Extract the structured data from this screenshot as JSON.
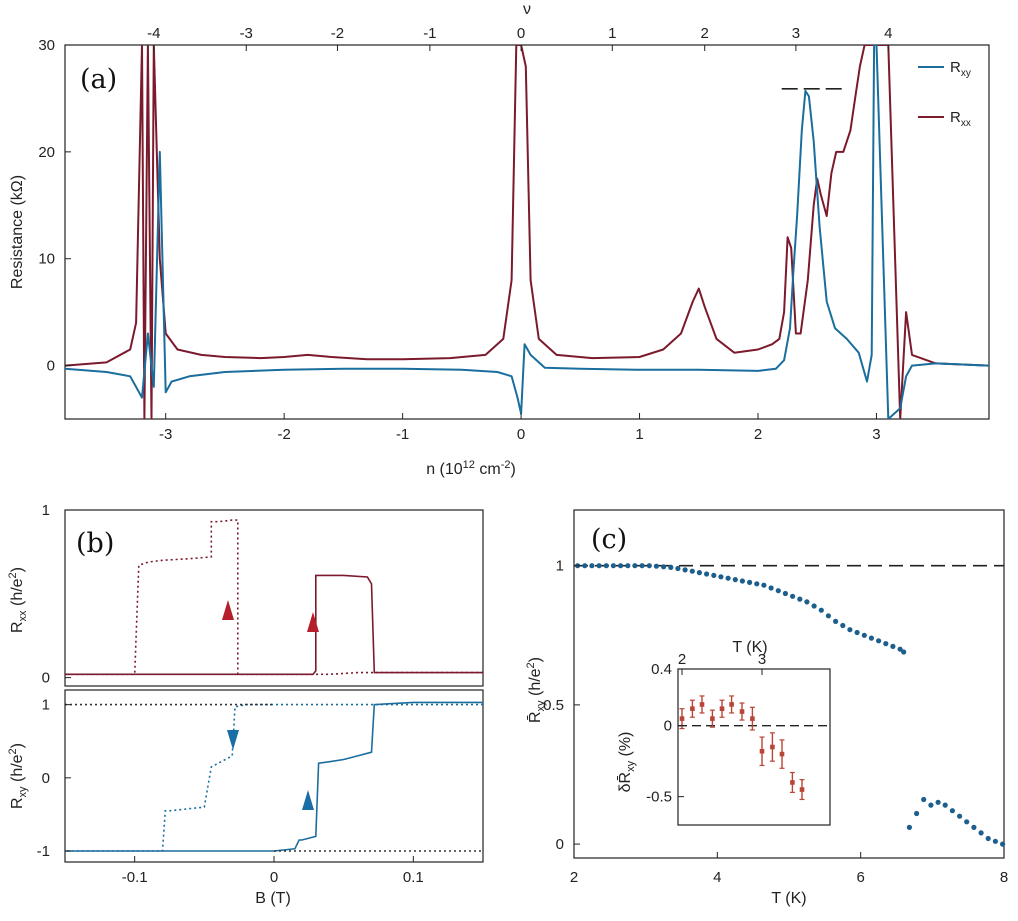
{
  "colors": {
    "rxy": "#1a6e9e",
    "rxx": "#7b1a2c",
    "rxx_arrow": "#b51e2a",
    "rxy_arrow": "#1a6ea8",
    "dots": "#1d5f8c",
    "inset": "#b84536"
  },
  "chart_data": [
    {
      "id": "a",
      "type": "line",
      "panel_label": "(a)",
      "xlabel": "n (10",
      "xlabel_sup": "12",
      "xlabel_tail": " cm",
      "xlabel_sup2": "-2",
      "xlabel_close": ")",
      "ylabel": "Resistance (kΩ)",
      "top_axis_label": "ν",
      "xlim": [
        -3.85,
        3.95
      ],
      "ylim": [
        -5,
        30
      ],
      "x_ticks": [
        "-3",
        "-2",
        "-1",
        "0",
        "1",
        "2",
        "3"
      ],
      "y_ticks": [
        "0",
        "10",
        "20",
        "30"
      ],
      "top_ticks": [
        "-4",
        "-3",
        "-2",
        "-1",
        "0",
        "1",
        "2",
        "3",
        "4"
      ],
      "top_tick_n": [
        -3.1,
        -2.32,
        -1.55,
        -0.77,
        0,
        0.77,
        1.55,
        2.32,
        3.1
      ],
      "legend": [
        {
          "label": "R",
          "sub": "xy"
        },
        {
          "label": "R",
          "sub": "xx"
        }
      ],
      "annotation": "quantized level marker at ~26 kΩ",
      "series": [
        {
          "name": "Rxy",
          "x": [
            -3.85,
            -3.5,
            -3.3,
            -3.2,
            -3.15,
            -3.1,
            -3.05,
            -3.0,
            -2.95,
            -2.8,
            -2.5,
            -2.0,
            -1.5,
            -1.0,
            -0.5,
            -0.2,
            -0.08,
            -0.03,
            0.0,
            0.03,
            0.08,
            0.2,
            0.5,
            1.0,
            1.5,
            2.0,
            2.15,
            2.22,
            2.27,
            2.3,
            2.33,
            2.37,
            2.4,
            2.43,
            2.47,
            2.52,
            2.58,
            2.65,
            2.75,
            2.85,
            2.92,
            2.96,
            2.98,
            3.0,
            3.1,
            3.2,
            3.25,
            3.3,
            3.5,
            3.95
          ],
          "y": [
            -0.3,
            -0.6,
            -1.0,
            -3.0,
            3.0,
            -2.0,
            20.0,
            -2.5,
            -1.5,
            -1.0,
            -0.6,
            -0.4,
            -0.3,
            -0.3,
            -0.4,
            -0.6,
            -1.0,
            -3.0,
            -4.5,
            2.0,
            1.0,
            -0.2,
            -0.3,
            -0.4,
            -0.4,
            -0.5,
            -0.3,
            0.5,
            3.5,
            9.0,
            14.0,
            22.0,
            25.7,
            25.2,
            21.0,
            13.0,
            6.0,
            3.5,
            2.5,
            1.2,
            -1.5,
            1.0,
            30.0,
            30.0,
            -5.0,
            -4.0,
            -1.0,
            0.0,
            0.2,
            0.0
          ]
        },
        {
          "name": "Rxx",
          "x": [
            -3.85,
            -3.5,
            -3.3,
            -3.25,
            -3.2,
            -3.18,
            -3.15,
            -3.12,
            -3.1,
            -3.05,
            -3.0,
            -2.9,
            -2.7,
            -2.5,
            -2.2,
            -2.0,
            -1.8,
            -1.6,
            -1.3,
            -1.0,
            -0.6,
            -0.3,
            -0.15,
            -0.08,
            -0.04,
            0.0,
            0.04,
            0.08,
            0.15,
            0.3,
            0.6,
            1.0,
            1.2,
            1.35,
            1.45,
            1.5,
            1.55,
            1.65,
            1.8,
            2.0,
            2.12,
            2.18,
            2.22,
            2.25,
            2.28,
            2.32,
            2.36,
            2.42,
            2.47,
            2.5,
            2.53,
            2.58,
            2.62,
            2.66,
            2.72,
            2.78,
            2.82,
            2.86,
            2.9,
            2.95,
            3.0,
            3.1,
            3.2,
            3.25,
            3.3,
            3.5,
            3.95
          ],
          "y": [
            0.0,
            0.3,
            1.5,
            4.0,
            30.0,
            -5.0,
            30.0,
            -5.0,
            30.0,
            10.0,
            3.0,
            1.5,
            1.0,
            0.8,
            0.7,
            0.8,
            1.0,
            0.8,
            0.6,
            0.6,
            0.7,
            1.0,
            2.5,
            8.0,
            30.0,
            30.0,
            28.0,
            8.0,
            2.5,
            1.0,
            0.7,
            0.8,
            1.5,
            3.0,
            6.0,
            7.2,
            5.5,
            2.5,
            1.2,
            1.5,
            2.0,
            2.5,
            5.0,
            12.0,
            11.0,
            3.0,
            3.0,
            8.0,
            15.0,
            17.5,
            16.0,
            14.0,
            18.0,
            20.0,
            20.0,
            22.0,
            25.0,
            28.0,
            30.0,
            30.0,
            30.0,
            30.0,
            -5.0,
            5.0,
            1.0,
            0.2,
            0.0
          ]
        }
      ]
    },
    {
      "id": "b_top",
      "type": "line",
      "panel_label": "(b)",
      "ylabel": "R",
      "ylabel_sub": "xx",
      "ylabel_unit": " (h/e",
      "ylabel_sup": "2",
      "ylabel_close": ")",
      "xlim": [
        -0.15,
        0.15
      ],
      "ylim": [
        -0.05,
        1.0
      ],
      "y_ticks": [
        "0",
        "1"
      ],
      "series": [
        {
          "name": "sweep down",
          "style": "dotted",
          "x": [
            0.15,
            0.06,
            0.04,
            0.03,
            0.0,
            -0.02,
            -0.026,
            -0.026,
            -0.03,
            -0.04,
            -0.045,
            -0.045,
            -0.06,
            -0.08,
            -0.09,
            -0.097,
            -0.1,
            -0.12,
            -0.15
          ],
          "y": [
            0.03,
            0.03,
            0.02,
            0.02,
            0.02,
            0.02,
            0.02,
            0.94,
            0.94,
            0.93,
            0.93,
            0.72,
            0.71,
            0.7,
            0.69,
            0.67,
            0.02,
            0.02,
            0.02
          ]
        },
        {
          "name": "sweep up",
          "style": "solid",
          "x": [
            -0.15,
            0.0,
            0.028,
            0.03,
            0.03,
            0.05,
            0.067,
            0.07,
            0.072,
            0.1,
            0.15
          ],
          "y": [
            0.02,
            0.02,
            0.02,
            0.04,
            0.61,
            0.61,
            0.6,
            0.56,
            0.03,
            0.03,
            0.03
          ]
        }
      ]
    },
    {
      "id": "b_bottom",
      "type": "line",
      "xlabel": "B (T)",
      "ylabel": "R",
      "ylabel_sub": "xy",
      "ylabel_unit": " (h/e",
      "ylabel_sup": "2",
      "ylabel_close": ")",
      "xlim": [
        -0.15,
        0.15
      ],
      "ylim": [
        -1.15,
        1.2
      ],
      "x_ticks": [
        "-0.1",
        "0",
        "0.1"
      ],
      "y_ticks": [
        "-1",
        "0",
        "1"
      ],
      "series": [
        {
          "name": "sweep down",
          "style": "dotted",
          "x": [
            0.15,
            0.075,
            0.07,
            0.05,
            0.035,
            -0.02,
            -0.028,
            -0.03,
            -0.04,
            -0.045,
            -0.05,
            -0.06,
            -0.075,
            -0.078,
            -0.08,
            -0.15
          ],
          "y": [
            1.0,
            1.0,
            1.0,
            1.0,
            1.0,
            1.0,
            0.97,
            0.3,
            0.2,
            0.15,
            -0.4,
            -0.42,
            -0.45,
            -0.45,
            -1.0,
            -1.0
          ]
        },
        {
          "name": "sweep up",
          "style": "solid",
          "x": [
            -0.15,
            0.0,
            0.015,
            0.018,
            0.02,
            0.03,
            0.032,
            0.04,
            0.05,
            0.06,
            0.07,
            0.072,
            0.1,
            0.15
          ],
          "y": [
            -1.0,
            -1.0,
            -0.97,
            -0.85,
            -0.85,
            -0.8,
            0.2,
            0.22,
            0.25,
            0.3,
            0.35,
            1.0,
            1.03,
            1.03
          ]
        },
        {
          "name": "+1 reference",
          "style": "dotted",
          "x": [
            -0.15,
            0.0
          ],
          "y": [
            1.0,
            1.0
          ]
        },
        {
          "name": "-1 reference",
          "style": "dotted",
          "x": [
            0.0,
            0.15
          ],
          "y": [
            -1.0,
            -1.0
          ]
        }
      ]
    },
    {
      "id": "c",
      "type": "scatter",
      "panel_label": "(c)",
      "xlabel": "T (K)",
      "ylabel": "R̄",
      "ylabel_sub": "xy",
      "ylabel_unit": " (h/e",
      "ylabel_sup": "2",
      "ylabel_close": ")",
      "xlim": [
        2,
        8
      ],
      "ylim": [
        -0.05,
        1.2
      ],
      "x_ticks": [
        "2",
        "4",
        "6",
        "8"
      ],
      "y_ticks": [
        "0",
        "0.5",
        "1"
      ],
      "reference_line": 1.0,
      "points": {
        "x": [
          2.05,
          2.15,
          2.25,
          2.35,
          2.45,
          2.55,
          2.65,
          2.75,
          2.85,
          2.95,
          3.05,
          3.15,
          3.25,
          3.35,
          3.45,
          3.55,
          3.65,
          3.75,
          3.85,
          3.95,
          4.05,
          4.15,
          4.25,
          4.35,
          4.45,
          4.55,
          4.65,
          4.75,
          4.85,
          4.95,
          5.05,
          5.15,
          5.25,
          5.35,
          5.45,
          5.55,
          5.65,
          5.75,
          5.85,
          5.95,
          6.05,
          6.15,
          6.25,
          6.35,
          6.45,
          6.55,
          6.6,
          6.68,
          6.78,
          6.88,
          6.98,
          7.08,
          7.18,
          7.28,
          7.38,
          7.48,
          7.58,
          7.68,
          7.78,
          7.88,
          7.98
        ],
        "y": [
          1.0,
          1.0,
          1.0,
          1.0,
          1.0,
          1.0,
          1.0,
          1.0,
          1.0,
          1.0,
          1.0,
          0.998,
          0.996,
          0.994,
          0.99,
          0.985,
          0.98,
          0.975,
          0.97,
          0.965,
          0.96,
          0.955,
          0.95,
          0.945,
          0.94,
          0.935,
          0.93,
          0.92,
          0.91,
          0.9,
          0.89,
          0.88,
          0.87,
          0.855,
          0.84,
          0.82,
          0.8,
          0.785,
          0.77,
          0.76,
          0.75,
          0.74,
          0.73,
          0.72,
          0.71,
          0.7,
          0.69,
          0.06,
          0.11,
          0.16,
          0.14,
          0.15,
          0.14,
          0.12,
          0.1,
          0.08,
          0.06,
          0.04,
          0.02,
          0.01,
          0.0
        ]
      },
      "inset": {
        "type": "scatter",
        "xlabel": "T (K)",
        "ylabel": "δR̄",
        "ylabel_sub": "xy",
        "ylabel_unit": " (%)",
        "xlim": [
          1.95,
          3.85
        ],
        "ylim": [
          -0.7,
          0.4
        ],
        "x_ticks": [
          "2",
          "3"
        ],
        "y_ticks": [
          "0.4",
          "0",
          "-0.5"
        ],
        "reference_line": 0.0,
        "points": {
          "x": [
            2.0,
            2.13,
            2.25,
            2.38,
            2.5,
            2.62,
            2.75,
            2.88,
            3.0,
            3.13,
            3.25,
            3.38,
            3.5
          ],
          "y": [
            0.05,
            0.12,
            0.15,
            0.05,
            0.12,
            0.15,
            0.1,
            0.05,
            -0.18,
            -0.15,
            -0.2,
            -0.4,
            -0.45
          ],
          "err": [
            0.07,
            0.06,
            0.06,
            0.06,
            0.06,
            0.06,
            0.06,
            0.08,
            0.1,
            0.1,
            0.1,
            0.07,
            0.07
          ]
        }
      }
    }
  ]
}
